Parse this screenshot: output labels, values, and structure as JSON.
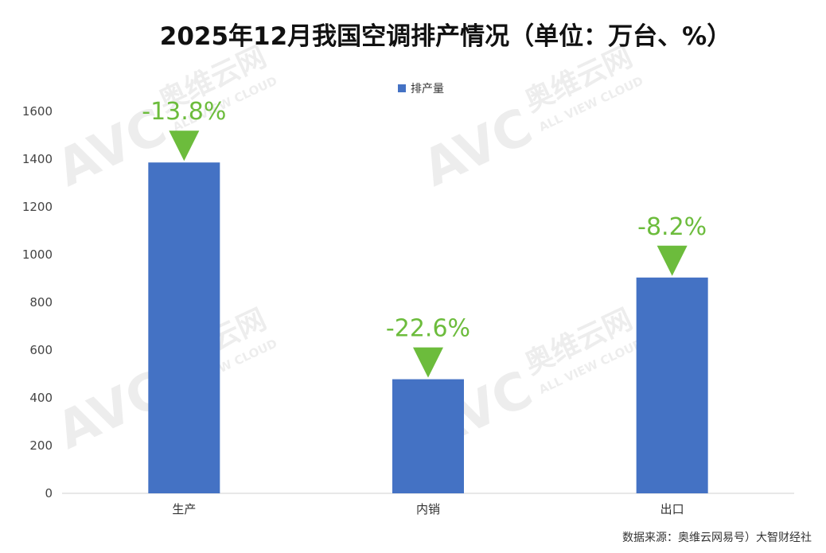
{
  "chart_data": {
    "type": "bar",
    "title": "2025年12月我国空调排产情况（单位：万台、%）",
    "categories": [
      "生产",
      "内销",
      "出口"
    ],
    "series": [
      {
        "name": "排产量",
        "values": [
          1386,
          478,
          904
        ],
        "changes": [
          "-13.8%",
          "-22.6%",
          "-8.2%"
        ]
      }
    ],
    "ylim": [
      0,
      1600
    ],
    "yticks": [
      0,
      200,
      400,
      600,
      800,
      1000,
      1200,
      1400,
      1600
    ],
    "xlabel": "",
    "ylabel": "",
    "grid": false,
    "legend": "top-center"
  },
  "colors": {
    "bar": "#4472c4",
    "indicator": "#6cbc3c",
    "axis": "#d0d0d0"
  },
  "watermark": {
    "logo_text": "AVC",
    "brand_cn": "奥维云网",
    "brand_en": "ALL VIEW CLOUD"
  },
  "source_text": "数据来源：奥维云网易号）大智财经社"
}
